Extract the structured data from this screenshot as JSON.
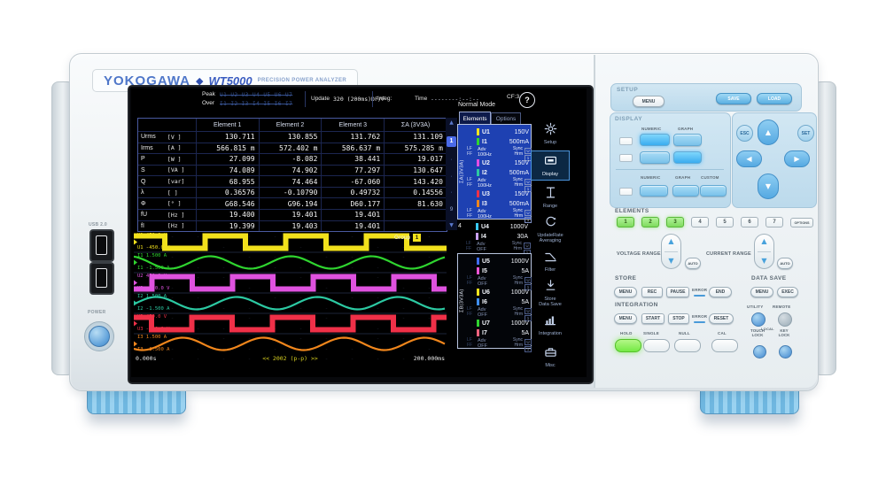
{
  "brand": {
    "logo": "YOKOGAWA",
    "diamond": "◆",
    "model": "WT5000",
    "subtitle": "PRECISION POWER ANALYZER"
  },
  "left_side": {
    "usb_label": "USB 2.0",
    "power_label": "POWER"
  },
  "colors": {
    "brand_blue": "#4f77c9",
    "panel_blue": "#bcdaec",
    "button_blue": "#7ac2ea",
    "lit_green": "#7fdb5e",
    "foot_blue": "#9ad2f0"
  },
  "screen": {
    "status": {
      "peak_label": "Peak",
      "over_label": "Over",
      "peak_values": "U1 U2 U3 U4 U5 U6 U7",
      "over_values": "I1 I2 I3 I4 I5 I6 I7",
      "update_label": "Update",
      "update_value": "320 (200ms)DF/F",
      "integ_label": "Integ:",
      "time_label": "Time",
      "time_value": "--------:--:--",
      "mode": "Normal Mode",
      "cf": "CF:3",
      "help": "?"
    },
    "tabs": [
      {
        "label": "Elements",
        "active": true
      },
      {
        "label": "Options",
        "active": false
      }
    ],
    "table": {
      "headers": [
        "Element 1",
        "Element 2",
        "Element 3",
        "ΣA (3V3A)"
      ],
      "rows": [
        {
          "name": "Urms",
          "unit": "[V  ]",
          "values": [
            "130.711",
            "130.855",
            "131.762",
            "131.109"
          ]
        },
        {
          "name": "Irms",
          "unit": "[A  ]",
          "values": [
            "566.815 m",
            "572.402 m",
            "586.637 m",
            "575.285 m"
          ]
        },
        {
          "name": "P",
          "unit": "[W  ]",
          "values": [
            "27.099",
            "-8.082",
            "38.441",
            "19.017"
          ]
        },
        {
          "name": "S",
          "unit": "[VA ]",
          "values": [
            "74.089",
            "74.902",
            "77.297",
            "130.647"
          ]
        },
        {
          "name": "Q",
          "unit": "[var]",
          "values": [
            "68.955",
            "74.464",
            "-67.060",
            "143.420"
          ]
        },
        {
          "name": "λ",
          "unit": "[   ]",
          "values": [
            "0.36576",
            "-0.10790",
            "0.49732",
            "0.14556"
          ]
        },
        {
          "name": "Φ",
          "unit": "[°  ]",
          "values": [
            "G68.546",
            "G96.194",
            "D60.177",
            "81.630"
          ]
        },
        {
          "name": "fU",
          "unit": "[Hz ]",
          "values": [
            "19.400",
            "19.401",
            "19.401",
            ""
          ]
        },
        {
          "name": "fI",
          "unit": "[Hz ]",
          "values": [
            "19.399",
            "19.403",
            "19.401",
            ""
          ]
        }
      ]
    },
    "pager": {
      "up": "▲",
      "current": "1",
      "dots": [
        "·",
        "·",
        "·"
      ],
      "last": "9",
      "down": "▼"
    },
    "waveform": {
      "group_label": "Group",
      "group_value": "1",
      "axis": {
        "start": "0.000s",
        "center": "<< 2002 (p-p) >>",
        "end": "200.000ms"
      },
      "channels": [
        {
          "name": "U1",
          "top": "450.0 V",
          "bottom": "-450.0 V",
          "color": "#f2e11c",
          "type": "square",
          "edge": 35
        },
        {
          "name": "I1",
          "top": "1.500 A",
          "bottom": "-1.500 A",
          "color": "#2fd42f",
          "type": "sine",
          "edge": 18
        },
        {
          "name": "U2",
          "top": "450.0 V",
          "bottom": "-450.0 V",
          "color": "#df52df",
          "type": "square",
          "edge": 66
        },
        {
          "name": "I2",
          "top": "1.500 A",
          "bottom": "-1.500 A",
          "color": "#2cc9a2",
          "type": "sine",
          "edge": 48
        },
        {
          "name": "U3",
          "top": "450.0 V",
          "bottom": "-450.0 V",
          "color": "#ef3048",
          "type": "square",
          "edge": 20
        },
        {
          "name": "I3",
          "top": "1.500 A",
          "bottom": "-1.500 A",
          "color": "#f0861c",
          "type": "sine",
          "edge": 78
        }
      ]
    },
    "elements_panel": {
      "group_a": "ΣA(3V3A)",
      "group_b": "ΣB(3V3A)",
      "entry4_label": "4",
      "entries": [
        {
          "u": "U1",
          "u_color": "#ffe61e",
          "u_range": "150V",
          "i": "I1",
          "i_color": "#2fd42f",
          "i_range": "500mA",
          "lf": "LF",
          "ff": "FF",
          "adv": "Adv",
          "freq": "100Hz",
          "sync": "Sync",
          "hrm": "Hrm",
          "badge_u": "U",
          "badge_n": "1",
          "group": "a",
          "active": true
        },
        {
          "u": "U2",
          "u_color": "#e44ce4",
          "u_range": "150V",
          "i": "I2",
          "i_color": "#2cc9a2",
          "i_range": "500mA",
          "lf": "LF",
          "ff": "FF",
          "adv": "Adv",
          "freq": "100Hz",
          "sync": "Sync",
          "hrm": "Hrm",
          "badge_u": "U",
          "badge_n": "1",
          "group": "a",
          "active": true
        },
        {
          "u": "U3",
          "u_color": "#f23048",
          "u_range": "150V",
          "i": "I3",
          "i_color": "#f0861c",
          "i_range": "500mA",
          "lf": "LF",
          "ff": "FF",
          "adv": "Adv",
          "freq": "100Hz",
          "sync": "Sync",
          "hrm": "Hrm",
          "badge_u": "U",
          "badge_n": "1",
          "group": "a",
          "active": true
        },
        {
          "u": "U4",
          "u_color": "#38c9f2",
          "u_range": "1000V",
          "i": "I4",
          "i_color": "#c9a0f5",
          "i_range": "30A",
          "lf": "LF",
          "ff": "FF",
          "adv": "Adv",
          "freq": "OFF",
          "sync": "Sync",
          "hrm": "Hrm",
          "badge_u": "U",
          "badge_n": "1",
          "group": "mid",
          "active": false
        },
        {
          "u": "U5",
          "u_color": "#3f6df2",
          "u_range": "1000V",
          "i": "I5",
          "i_color": "#ee55d4",
          "i_range": "5A",
          "lf": "LF",
          "ff": "FF",
          "adv": "Adv",
          "freq": "OFF",
          "sync": "Sync",
          "hrm": "Hrm",
          "badge_u": "U",
          "badge_n": "1",
          "group": "b",
          "active": false
        },
        {
          "u": "U6",
          "u_color": "#ffe61e",
          "u_range": "1000V",
          "i": "I6",
          "i_color": "#3f8ef2",
          "i_range": "5A",
          "lf": "LF",
          "ff": "FF",
          "adv": "Adv",
          "freq": "OFF",
          "sync": "Sync",
          "hrm": "Hrm",
          "badge_u": "U",
          "badge_n": "1",
          "group": "b",
          "active": false
        },
        {
          "u": "U7",
          "u_color": "#2fd42f",
          "u_range": "1000V",
          "i": "I7",
          "i_color": "#f2637f",
          "i_range": "5A",
          "lf": "LF",
          "ff": "FF",
          "adv": "Adv",
          "freq": "OFF",
          "sync": "Sync",
          "hrm": "Hrm",
          "badge_u": "U",
          "badge_n": "1",
          "group": "b",
          "active": false
        }
      ]
    },
    "icon_strip": [
      {
        "id": "setup",
        "label": [
          "Setup"
        ],
        "active": false
      },
      {
        "id": "display",
        "label": [
          "Display"
        ],
        "active": true
      },
      {
        "id": "range",
        "label": [
          "Range"
        ],
        "active": false
      },
      {
        "id": "update-rate",
        "label": [
          "UpdateRate",
          "Averaging"
        ],
        "active": false
      },
      {
        "id": "filter",
        "label": [
          "Filter"
        ],
        "active": false
      },
      {
        "id": "store",
        "label": [
          "Store",
          "Data Save"
        ],
        "active": false
      },
      {
        "id": "integration",
        "label": [
          "Integration"
        ],
        "active": false
      },
      {
        "id": "misc",
        "label": [
          "Misc"
        ],
        "active": false
      }
    ]
  },
  "panel": {
    "setup": {
      "title": "SETUP",
      "menu": "MENU",
      "save": "SAVE",
      "load": "LOAD"
    },
    "display": {
      "title": "DISPLAY",
      "row1_labels": [
        "NUMERIC",
        "GRAPH"
      ],
      "row3_labels": [
        "NUMERIC",
        "GRAPH",
        "CUSTOM"
      ]
    },
    "nav": {
      "esc": "ESC",
      "set": "SET"
    },
    "elements": {
      "title": "ELEMENTS",
      "buttons": [
        "1",
        "2",
        "3",
        "4",
        "5",
        "6",
        "7"
      ],
      "options_label": "OPTIONS",
      "active_count": 3
    },
    "voltage_range": {
      "label": "VOLTAGE RANGE",
      "auto": "AUTO"
    },
    "current_range": {
      "label": "CURRENT RANGE",
      "auto": "AUTO"
    },
    "store": {
      "title": "STORE",
      "menu": "MENU",
      "rec": "REC",
      "pause": "PAUSE",
      "error": "ERROR",
      "end": "END"
    },
    "data_save": {
      "title": "DATA SAVE",
      "menu": "MENU",
      "exec": "EXEC"
    },
    "integration": {
      "title": "INTEGRATION",
      "menu": "MENU",
      "start": "START",
      "stop": "STOP",
      "error": "ERROR",
      "reset": "RESET"
    },
    "utility": {
      "label": "UTILITY",
      "remote_label": "REMOTE",
      "local_label": "LOCAL"
    },
    "bottom": {
      "hold": "HOLD",
      "single": "SINGLE",
      "null": "NULL",
      "cal": "CAL",
      "touch_lock": [
        "TOUCH",
        "LOCK"
      ],
      "key_lock": [
        "KEY",
        "LOCK"
      ]
    }
  }
}
